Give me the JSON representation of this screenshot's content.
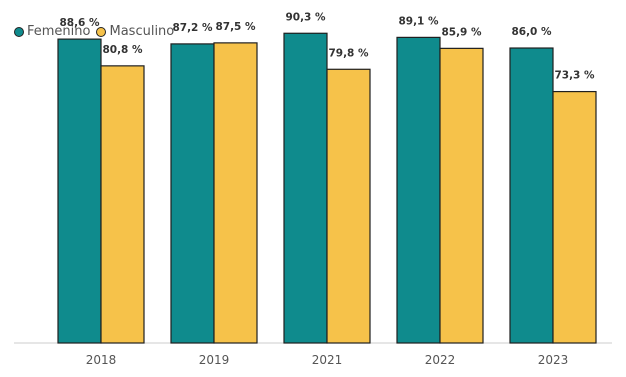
{
  "colors": {
    "femenino": "#0f8b8d",
    "masculino": "#f6c24a",
    "stroke": "#1f1f1f"
  },
  "legend": [
    {
      "name": "Femenino",
      "color": "#0f8b8d"
    },
    {
      "name": "Masculino",
      "color": "#f6c24a"
    }
  ],
  "chart_data": {
    "type": "bar",
    "title": "",
    "xlabel": "",
    "ylabel": "",
    "categories": [
      "2018",
      "2019",
      "2021",
      "2022",
      "2023"
    ],
    "series": [
      {
        "name": "Femenino",
        "values": [
          88.6,
          87.2,
          90.3,
          89.1,
          86.0
        ],
        "labels": [
          "88,6 %",
          "87,2 %",
          "90,3 %",
          "89,1 %",
          "86,0 %"
        ]
      },
      {
        "name": "Masculino",
        "values": [
          80.8,
          87.5,
          79.8,
          85.9,
          73.3
        ],
        "labels": [
          "80,8 %",
          "87,5 %",
          "79,8 %",
          "85,9 %",
          "73,3 %"
        ]
      }
    ],
    "ylim": [
      0,
      100
    ],
    "grid": false,
    "legend_position": "top-left"
  }
}
